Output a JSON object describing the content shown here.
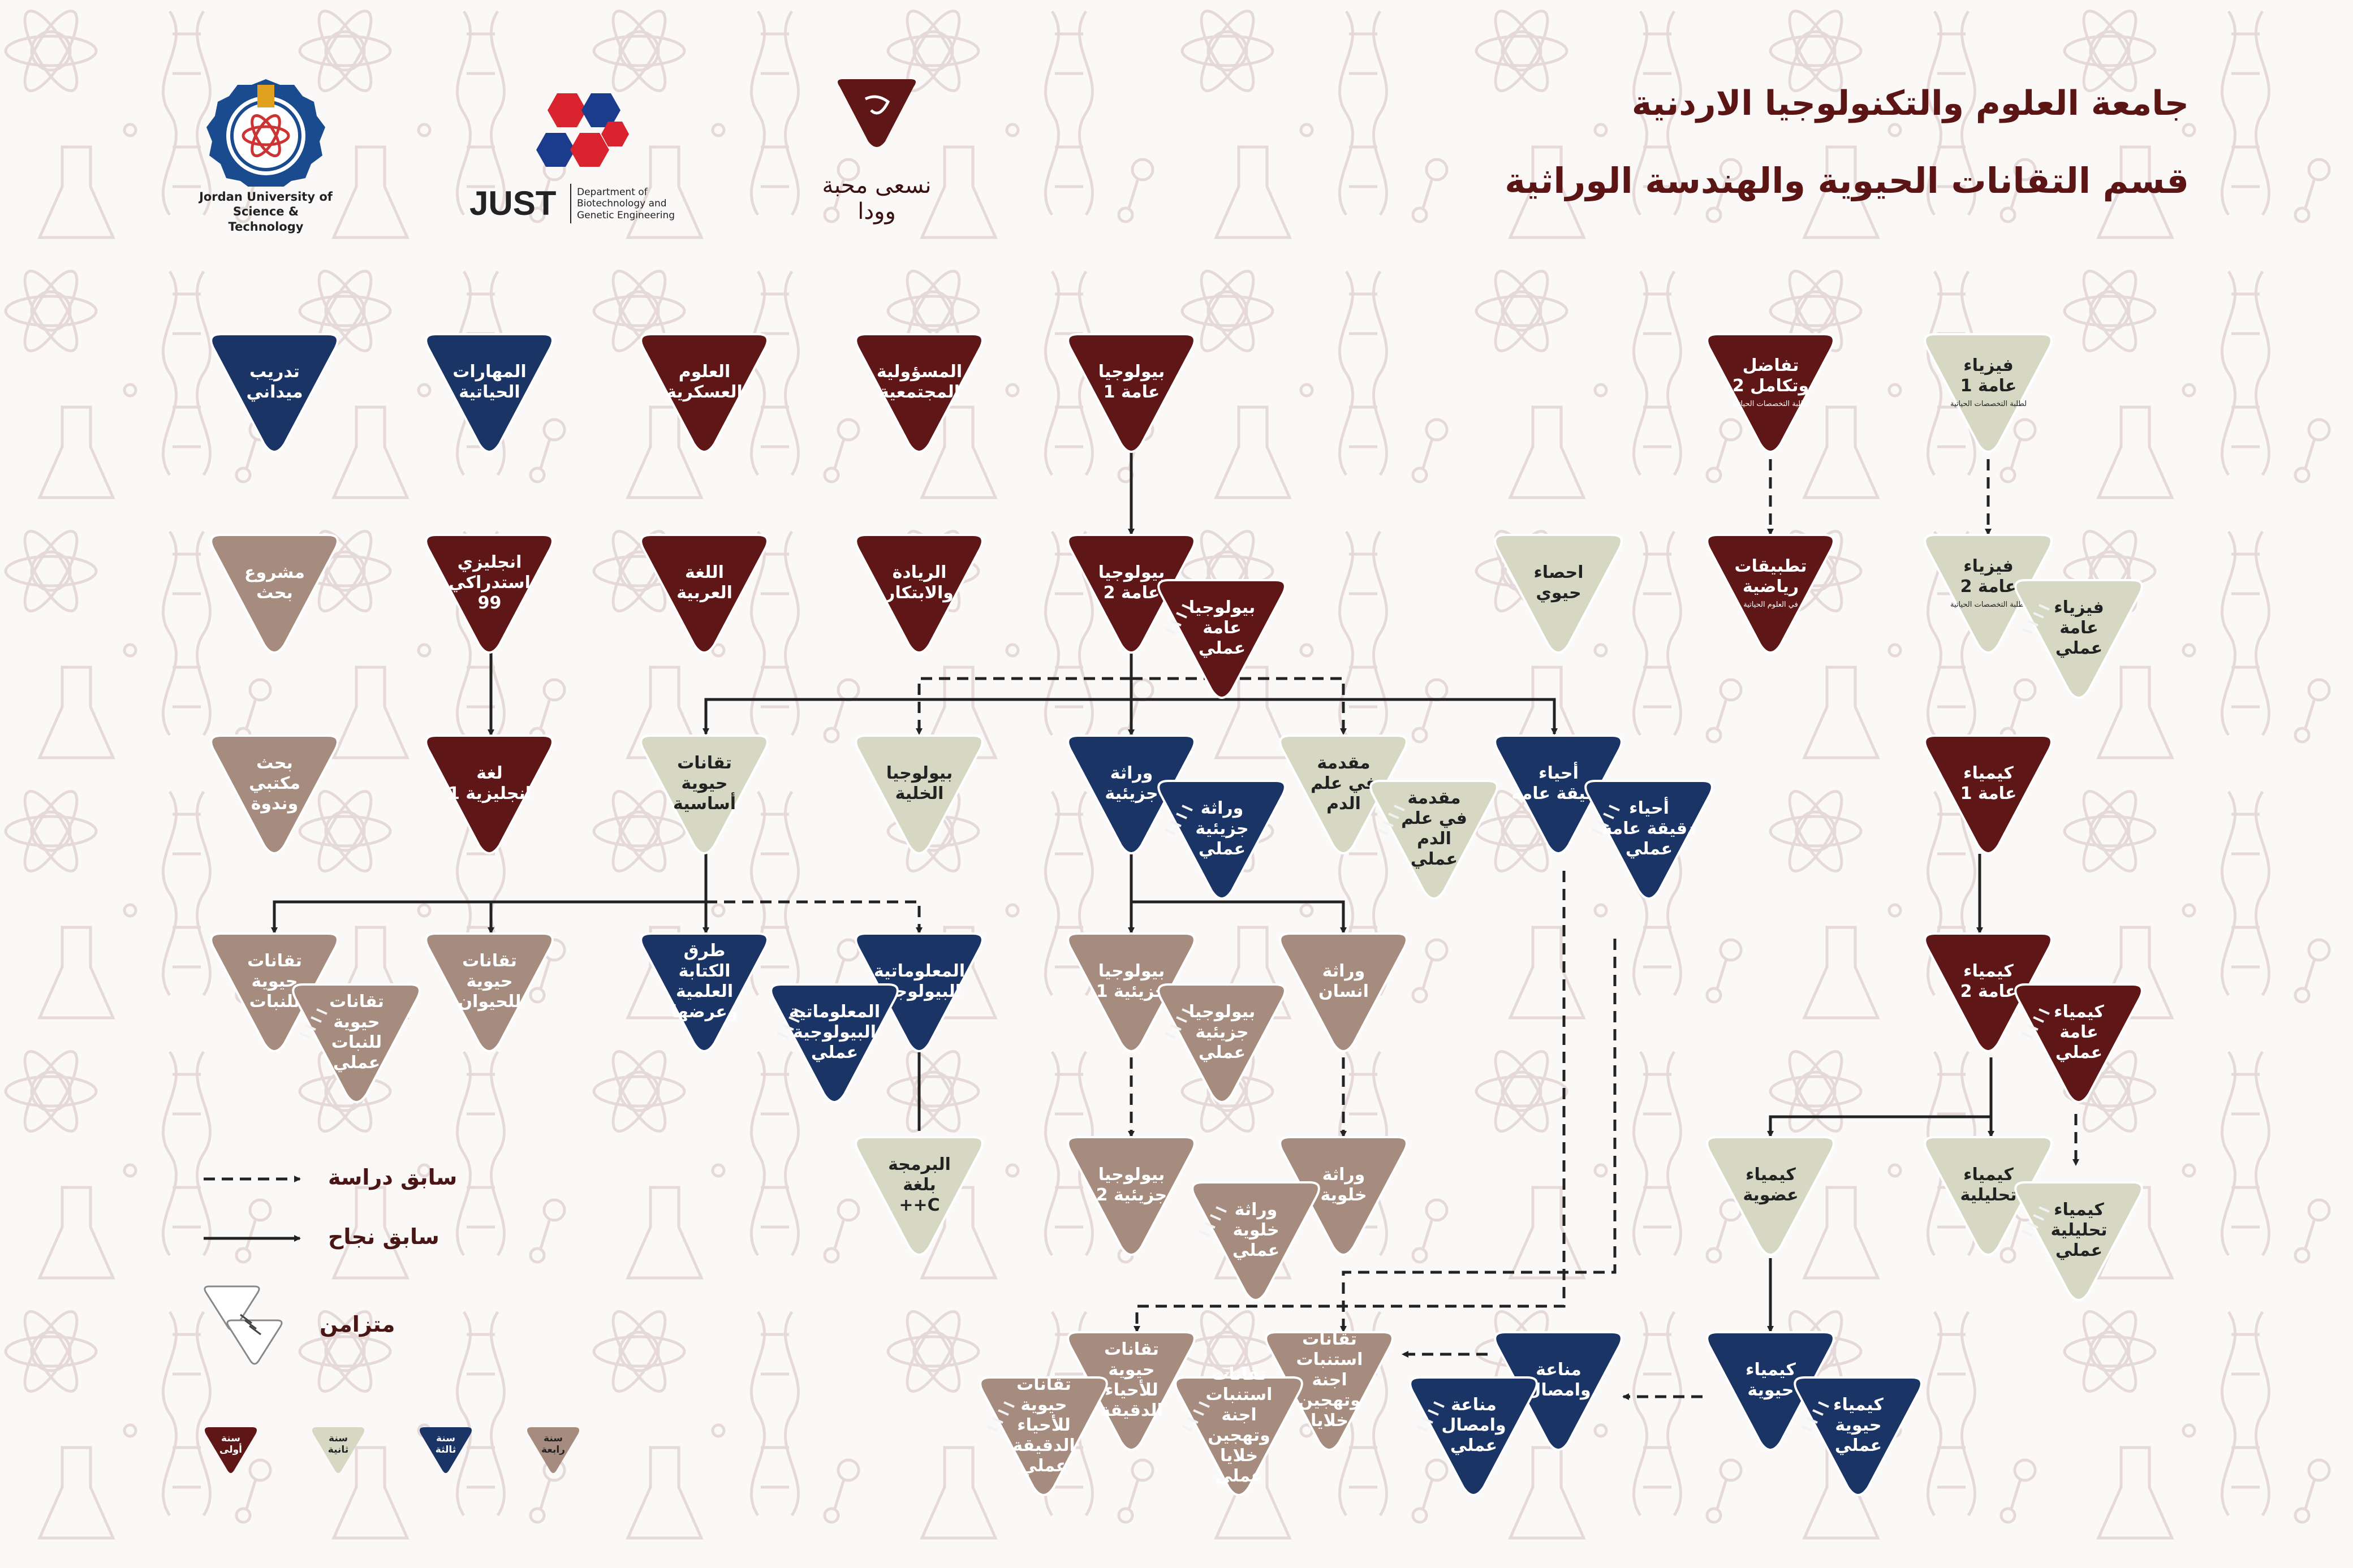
{
  "header": {
    "title_line1": "جامعة العلوم والتكنولوجيا الاردنية",
    "title_line2": "قسم التقانات الحيوية والهندسة الوراثية"
  },
  "logos": {
    "university_name": "Jordan University of Science & Technology",
    "just_label": "JUST",
    "department_name": "Department of Biotechnology and Genetic Engineering",
    "slogan": "نسعى محبة وودا"
  },
  "colors": {
    "year1": "#5e1616",
    "year2": "#d6d8c3",
    "year3": "#1b3466",
    "year4": "#a58c7e",
    "title": "#5b1515"
  },
  "courses": [
    {
      "id": "field-training",
      "label": "تدريب\nميداني",
      "year": 3
    },
    {
      "id": "life-skills",
      "label": "المهارات\nالحياتية",
      "year": 3
    },
    {
      "id": "military-science",
      "label": "العلوم\nالعسكرية",
      "year": 1
    },
    {
      "id": "social-responsibility",
      "label": "المسؤولية\nالمجتمعية",
      "year": 1
    },
    {
      "id": "general-biology-1",
      "label": "بيولوجيا\nعامة 1",
      "year": 1
    },
    {
      "id": "calculus-2",
      "label": "تفاضل\nوتكامل 2",
      "year": 1,
      "sub": "لطلبة التخصصات الحياتية"
    },
    {
      "id": "physics-1",
      "label": "فيزياء\nعامة 1",
      "year": 2,
      "sub": "لطلبة التخصصات الحياتية"
    },
    {
      "id": "research-project",
      "label": "مشروع\nبحث",
      "year": 4
    },
    {
      "id": "english-99",
      "label": "انجليزي\nاستدراكي\n99",
      "year": 1
    },
    {
      "id": "arabic",
      "label": "اللغة\nالعربية",
      "year": 1
    },
    {
      "id": "entrepreneurship",
      "label": "الريادة\nوالابتكار",
      "year": 1
    },
    {
      "id": "general-biology-2",
      "label": "بيولوجيا\nعامة 2",
      "year": 1
    },
    {
      "id": "general-biology-lab",
      "label": "بيولوجيا\nعامة\nعملي",
      "year": 1
    },
    {
      "id": "biostatistics",
      "label": "احصاء\nحيوي",
      "year": 2
    },
    {
      "id": "applied-math",
      "label": "تطبيقات\nرياضية",
      "year": 1,
      "sub": "في العلوم الحياتية"
    },
    {
      "id": "physics-2",
      "label": "فيزياء\nعامة 2",
      "year": 2,
      "sub": "لطلبة التخصصات الحياتية"
    },
    {
      "id": "physics-lab",
      "label": "فيزياء\nعامة\nعملي",
      "year": 2
    },
    {
      "id": "library-research",
      "label": "بحث\nمكتبي\nوندوة",
      "year": 4
    },
    {
      "id": "english-1",
      "label": "لغة\nانجليزية 1",
      "year": 1
    },
    {
      "id": "basic-biotech",
      "label": "تقانات\nحيوية\nأساسية",
      "year": 2
    },
    {
      "id": "cell-biology",
      "label": "بيولوجيا\nالخلية",
      "year": 2
    },
    {
      "id": "molecular-genetics",
      "label": "وراثة\nجزيئية",
      "year": 3
    },
    {
      "id": "molecular-genetics-lab",
      "label": "وراثة\nجزيئية\nعملي",
      "year": 3
    },
    {
      "id": "hematology-intro",
      "label": "مقدمة\nفي علم الدم",
      "year": 2
    },
    {
      "id": "hematology-intro-lab",
      "label": "مقدمة\nفي علم الدم\nعملي",
      "year": 2
    },
    {
      "id": "general-microbiology",
      "label": "أحياء\nدقيقة عامة",
      "year": 3
    },
    {
      "id": "general-microbiology-lab",
      "label": "أحياء\nدقيقة عامة\nعملي",
      "year": 3
    },
    {
      "id": "general-chemistry-1",
      "label": "كيمياء\nعامة 1",
      "year": 1
    },
    {
      "id": "plant-biotech",
      "label": "تقانات\nحيوية للنبات",
      "year": 4
    },
    {
      "id": "plant-biotech-lab",
      "label": "تقانات\nحيوية للنبات\nعملي",
      "year": 4
    },
    {
      "id": "animal-biotech",
      "label": "تقانات\nحيوية للحيوان",
      "year": 4
    },
    {
      "id": "scientific-writing",
      "label": "طرق الكتابة\nالعلمية\nوعرضها",
      "year": 3
    },
    {
      "id": "bioinformatics",
      "label": "المعلوماتية\nالبيولوجية",
      "year": 3
    },
    {
      "id": "bioinformatics-lab",
      "label": "المعلوماتية\nالبيولوجية\nعملي",
      "year": 3
    },
    {
      "id": "molecular-biology-1",
      "label": "بيولوجيا\nجزيئية 1",
      "year": 4
    },
    {
      "id": "molecular-biology-lab",
      "label": "بيولوجيا\nجزيئية\nعملي",
      "year": 4
    },
    {
      "id": "human-genetics",
      "label": "وراثة\nانسان",
      "year": 4
    },
    {
      "id": "general-chemistry-2",
      "label": "كيمياء\nعامة 2",
      "year": 1
    },
    {
      "id": "general-chemistry-lab",
      "label": "كيمياء\nعامة\nعملي",
      "year": 1
    },
    {
      "id": "cpp-programming",
      "label": "البرمجة\nبلغة\nC++",
      "year": 2
    },
    {
      "id": "molecular-biology-2",
      "label": "بيولوجيا\nجزيئية 2",
      "year": 4
    },
    {
      "id": "cytogenetics",
      "label": "وراثة\nخلوية",
      "year": 4
    },
    {
      "id": "cytogenetics-lab",
      "label": "وراثة\nخلوية\nعملي",
      "year": 4
    },
    {
      "id": "organic-chemistry",
      "label": "كيمياء\nعضوية",
      "year": 2
    },
    {
      "id": "analytical-chemistry",
      "label": "كيمياء\nتحليلية",
      "year": 2
    },
    {
      "id": "analytical-chemistry-lab",
      "label": "كيمياء\nتحليلية\nعملي",
      "year": 2
    },
    {
      "id": "microbial-biotech",
      "label": "تقانات حيوية\nللأحياء\nالدقيقة",
      "year": 4
    },
    {
      "id": "microbial-biotech-lab",
      "label": "تقانات\nحيوية للأحياء\nالدقيقة\nعملي",
      "year": 4
    },
    {
      "id": "embryo-culture",
      "label": "تقانات\nاستنبات اجنة\nوتهجين\nخلايا",
      "year": 4
    },
    {
      "id": "embryo-culture-lab",
      "label": "تقانات\nاستنبات اجنة\nوتهجين خلايا\nعملي",
      "year": 4
    },
    {
      "id": "immunology",
      "label": "مناعة\nوامصال",
      "year": 3
    },
    {
      "id": "immunology-lab",
      "label": "مناعة\nوامصال\nعملي",
      "year": 3
    },
    {
      "id": "biochemistry",
      "label": "كيمياء\nحيوية",
      "year": 3
    },
    {
      "id": "biochemistry-lab",
      "label": "كيمياء\nحيوية\nعملي",
      "year": 3
    }
  ],
  "legend": {
    "study_prereq": "سابق دراسة",
    "pass_prereq": "سابق نجاح",
    "concurrent": "متزامن",
    "year1": "سنة\nأولى",
    "year2": "سنة\nثانية",
    "year3": "سنة\nثالثة",
    "year4": "سنة\nرابعة"
  }
}
